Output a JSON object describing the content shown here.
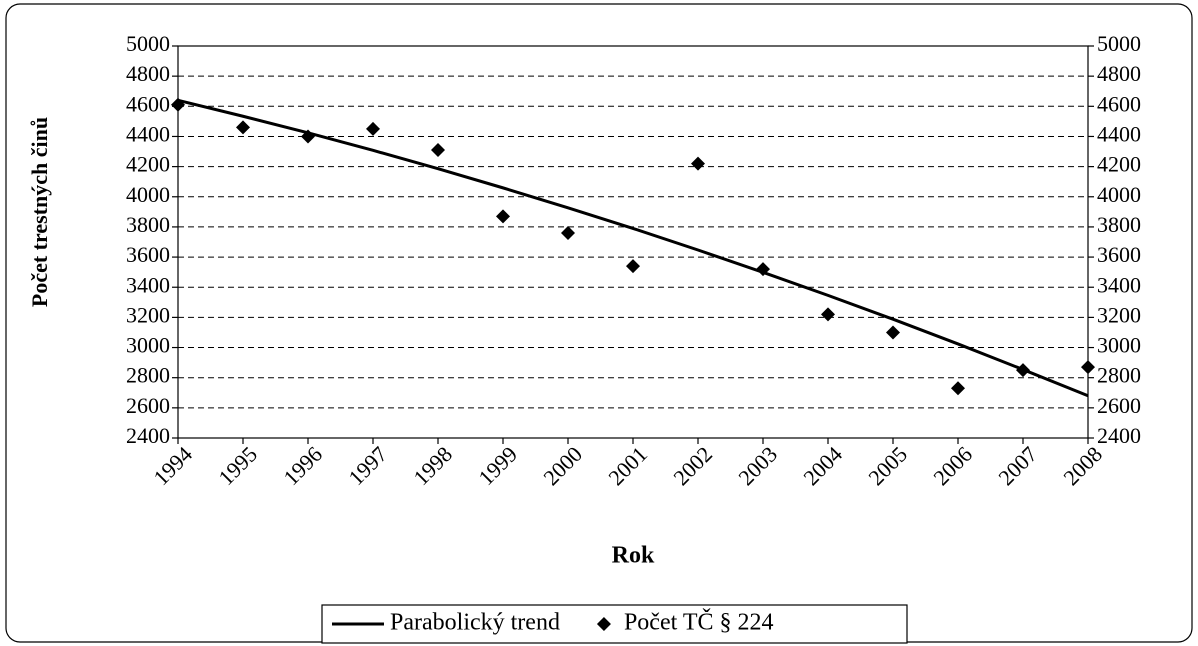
{
  "chart_data": {
    "type": "line",
    "y_label": "Počet trestných činů",
    "x_label": "Rok",
    "categories": [
      "1994",
      "1995",
      "1996",
      "1997",
      "1998",
      "1999",
      "2000",
      "2001",
      "2002",
      "2003",
      "2004",
      "2005",
      "2006",
      "2007",
      "2008"
    ],
    "series": [
      {
        "name": "Parabolický trend",
        "color": "#000000",
        "kind": "line",
        "values": [
          4640,
          4534,
          4424,
          4308,
          4186,
          4059,
          3927,
          3790,
          3647,
          3499,
          3346,
          3188,
          3024,
          2854,
          2680
        ]
      },
      {
        "name": "Počet TČ § 224",
        "color": "#000000",
        "kind": "marker",
        "values": [
          4610,
          4460,
          4400,
          4450,
          4310,
          3870,
          3760,
          3540,
          4220,
          3520,
          3220,
          3100,
          2730,
          2850,
          2870
        ]
      }
    ],
    "ylim": [
      2400,
      5000
    ],
    "yticks": [
      2400,
      2600,
      2800,
      3000,
      3200,
      3400,
      3600,
      3800,
      4000,
      4200,
      4400,
      4600,
      4800,
      5000
    ],
    "y2lim": [
      2400,
      5000
    ],
    "y2ticks": [
      2400,
      2600,
      2800,
      3000,
      3200,
      3400,
      3600,
      3800,
      4000,
      4200,
      4400,
      4600,
      4800,
      5000
    ],
    "grid": true,
    "legend": "bottom"
  }
}
